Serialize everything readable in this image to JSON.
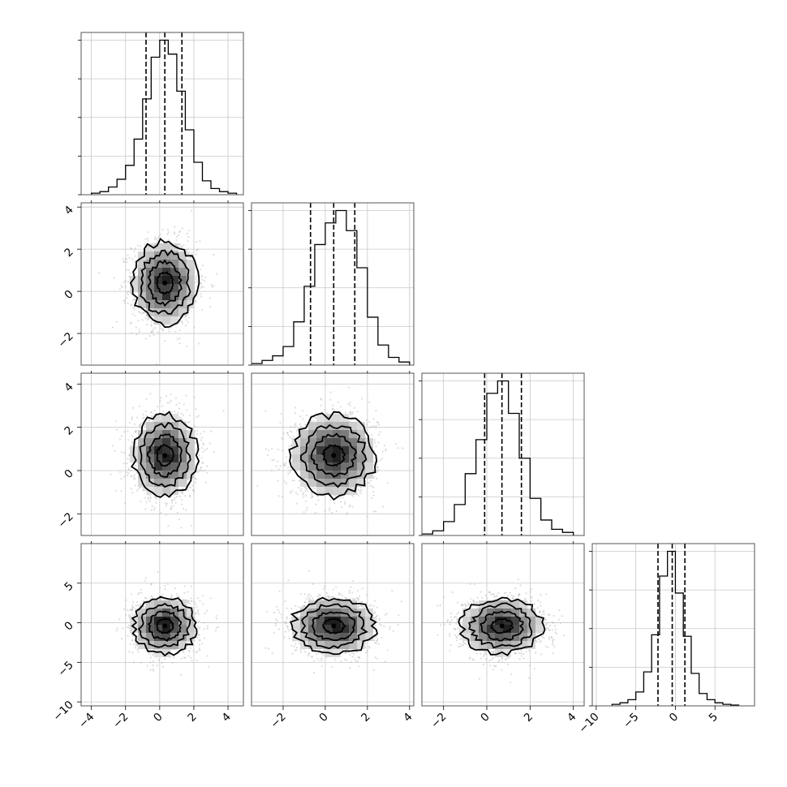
{
  "chart_data": {
    "type": "corner",
    "title": "",
    "grid": true,
    "n_params": 4,
    "colors": {
      "lines": "#000000",
      "grid": "#c8c8c8",
      "samples": "#b4b4b4",
      "density_dark": "#1a1a1a"
    },
    "params": [
      {
        "index": 0,
        "range": [
          -4.6,
          4.9
        ],
        "ticks": [
          -4,
          -2,
          0,
          2,
          4
        ],
        "tick_labels": [
          "−4",
          "−2",
          "0",
          "2",
          "4"
        ],
        "quantiles": [
          -0.8,
          0.3,
          1.3
        ],
        "median": 0.3,
        "sigma": 0.95,
        "hist_bins": [
          -4.0,
          -3.5,
          -3.0,
          -2.5,
          -2.0,
          -1.5,
          -1.0,
          -0.5,
          0.0,
          0.5,
          1.0,
          1.5,
          2.0,
          2.5,
          3.0,
          3.5,
          4.0,
          4.5
        ],
        "hist_counts": [
          0.01,
          0.02,
          0.05,
          0.1,
          0.19,
          0.36,
          0.62,
          0.89,
          1.0,
          0.91,
          0.67,
          0.42,
          0.21,
          0.09,
          0.04,
          0.02,
          0.01
        ]
      },
      {
        "index": 1,
        "range": [
          -3.5,
          4.2
        ],
        "ticks": [
          -2,
          0,
          2,
          4
        ],
        "tick_labels": [
          "−2",
          "0",
          "2",
          "4"
        ],
        "quantiles": [
          -0.7,
          0.4,
          1.4
        ],
        "median": 0.4,
        "sigma": 1.0,
        "hist_bins": [
          -3.5,
          -3.0,
          -2.5,
          -2.0,
          -1.5,
          -1.0,
          -0.5,
          0.0,
          0.5,
          1.0,
          1.5,
          2.0,
          2.5,
          3.0,
          3.5,
          4.0
        ],
        "hist_counts": [
          0.01,
          0.03,
          0.06,
          0.12,
          0.28,
          0.51,
          0.78,
          0.92,
          1.0,
          0.87,
          0.63,
          0.31,
          0.13,
          0.05,
          0.02
        ]
      },
      {
        "index": 2,
        "range": [
          -3.0,
          4.5
        ],
        "ticks": [
          -2,
          0,
          2,
          4
        ],
        "tick_labels": [
          "−2",
          "0",
          "2",
          "4"
        ],
        "quantiles": [
          -0.1,
          0.7,
          1.6
        ],
        "median": 0.7,
        "sigma": 0.95,
        "hist_bins": [
          -3.0,
          -2.5,
          -2.0,
          -1.5,
          -1.0,
          -0.5,
          0.0,
          0.5,
          1.0,
          1.5,
          2.0,
          2.5,
          3.0,
          3.5,
          4.0
        ],
        "hist_counts": [
          0.01,
          0.03,
          0.09,
          0.2,
          0.4,
          0.62,
          0.92,
          1.0,
          0.79,
          0.5,
          0.24,
          0.1,
          0.04,
          0.02
        ]
      },
      {
        "index": 3,
        "range": [
          -10.5,
          10.0
        ],
        "ticks": [
          -10,
          -5,
          0,
          5
        ],
        "tick_labels": [
          "−10",
          "−5",
          "0",
          "5"
        ],
        "quantiles": [
          -2.2,
          -0.4,
          1.2
        ],
        "median": -0.4,
        "sigma": 1.8,
        "hist_bins": [
          -8.0,
          -7.0,
          -6.0,
          -5.0,
          -4.0,
          -3.0,
          -2.0,
          -1.0,
          0.0,
          1.0,
          2.0,
          3.0,
          4.0,
          5.0,
          6.0,
          7.0,
          8.0
        ],
        "hist_counts": [
          0.01,
          0.02,
          0.04,
          0.09,
          0.22,
          0.46,
          0.84,
          1.0,
          0.73,
          0.45,
          0.21,
          0.08,
          0.04,
          0.02,
          0.01,
          0.005
        ]
      }
    ],
    "row_tick_labels": {
      "1": [
        "−2",
        "0",
        "2",
        "4"
      ],
      "2": [
        "−2",
        "0",
        "2",
        "4"
      ],
      "3": [
        "−10",
        "−5",
        "0",
        "5"
      ]
    },
    "histogram_ylim": [
      0,
      1.05
    ],
    "histogram_yticks": [
      0,
      0.25,
      0.5,
      0.75,
      1.0
    ],
    "contour_levels_sigma": [
      0.5,
      1.0,
      1.5,
      2.0
    ],
    "density_bins": 20
  }
}
